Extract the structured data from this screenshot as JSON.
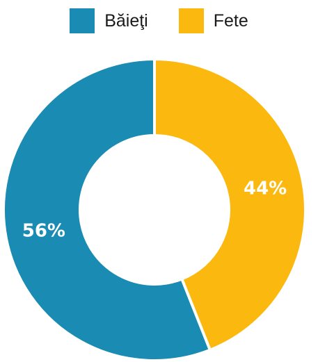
{
  "chart_data": {
    "type": "pie",
    "variant": "donut",
    "categories": [
      "Băieţi",
      "Fete"
    ],
    "values": [
      56,
      44
    ],
    "value_labels": [
      "56%",
      "44%"
    ],
    "unit": "%",
    "colors": [
      "#1a8bb3",
      "#fbb80f"
    ],
    "legend_position": "top-center",
    "title": ""
  },
  "legend": {
    "items": [
      {
        "label": "Băieţi",
        "color": "#1a8bb3"
      },
      {
        "label": "Fete",
        "color": "#fbb80f"
      }
    ]
  }
}
